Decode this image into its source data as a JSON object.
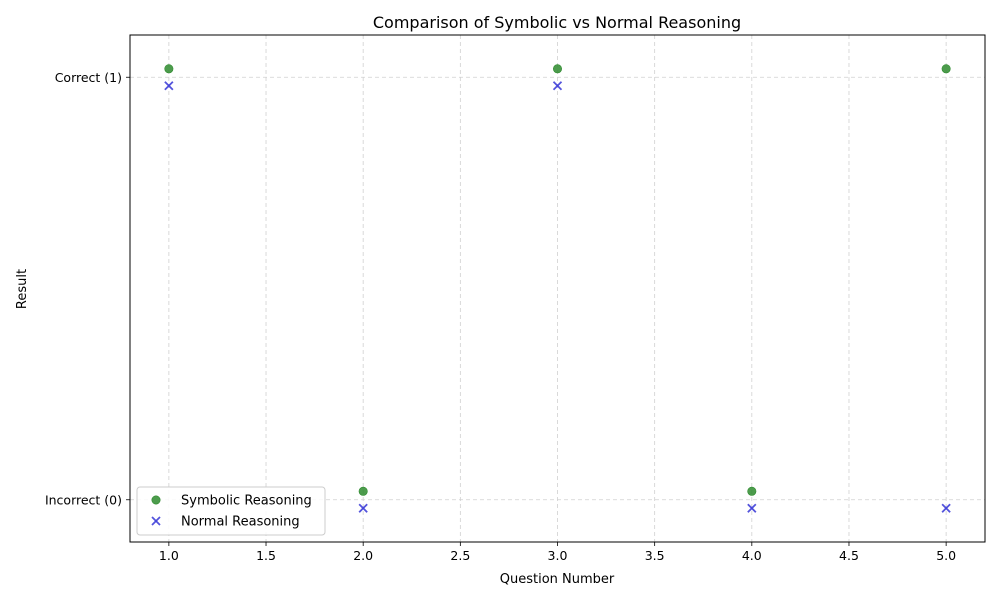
{
  "chart_data": {
    "type": "scatter",
    "title": "Comparison of Symbolic vs Normal Reasoning",
    "xlabel": "Question Number",
    "ylabel": "Result",
    "xlim": [
      0.8,
      5.2
    ],
    "ylim": [
      -0.1,
      1.1
    ],
    "xticks": [
      1.0,
      1.5,
      2.0,
      2.5,
      3.0,
      3.5,
      4.0,
      4.5,
      5.0
    ],
    "xtick_labels": [
      "1.0",
      "1.5",
      "2.0",
      "2.5",
      "3.0",
      "3.5",
      "4.0",
      "4.5",
      "5.0"
    ],
    "yticks": [
      0,
      1
    ],
    "ytick_labels": [
      "Incorrect (0)",
      "Correct (1)"
    ],
    "grid": true,
    "legend_position": "lower-left",
    "series": [
      {
        "name": "Symbolic Reasoning",
        "marker": "circle",
        "color": "#2e8b2e",
        "offset": 0.02,
        "x": [
          1,
          2,
          3,
          4,
          5
        ],
        "y": [
          1,
          0,
          1,
          0,
          1
        ]
      },
      {
        "name": "Normal Reasoning",
        "marker": "x",
        "color": "#4040d8",
        "offset": -0.02,
        "x": [
          1,
          2,
          3,
          4,
          5
        ],
        "y": [
          1,
          0,
          1,
          0,
          0
        ]
      }
    ]
  }
}
